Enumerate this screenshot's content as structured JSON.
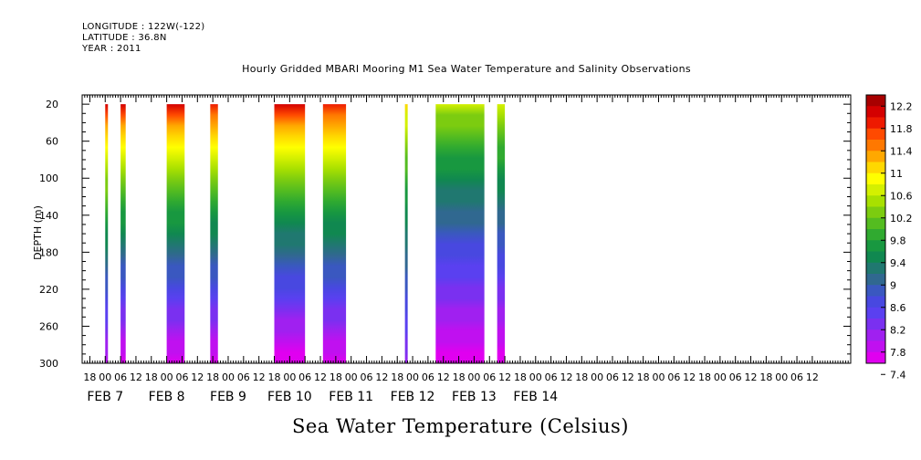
{
  "header": {
    "longitude": "LONGITUDE : 122W(-122)",
    "latitude": "LATITUDE : 36.8N",
    "year": "YEAR : 2011"
  },
  "chart_data": {
    "type": "heatmap",
    "title": "Hourly Gridded MBARI Mooring M1 Sea Water Temperature and Salinity Observations",
    "variable_label": "Sea Water Temperature (Celsius)",
    "ylabel": "DEPTH (m)",
    "ylim": [
      300,
      10
    ],
    "y_ticks": [
      20,
      60,
      100,
      140,
      180,
      220,
      260,
      300
    ],
    "xlim_hours": [
      -9,
      291
    ],
    "x_hour_ticks": [
      {
        "h": -6,
        "label": "18"
      },
      {
        "h": 0,
        "label": "00"
      },
      {
        "h": 6,
        "label": "06"
      },
      {
        "h": 12,
        "label": "12"
      },
      {
        "h": 18,
        "label": "18"
      },
      {
        "h": 24,
        "label": "00"
      },
      {
        "h": 30,
        "label": "06"
      },
      {
        "h": 36,
        "label": "12"
      },
      {
        "h": 42,
        "label": "18"
      },
      {
        "h": 48,
        "label": "00"
      },
      {
        "h": 54,
        "label": "06"
      },
      {
        "h": 60,
        "label": "12"
      },
      {
        "h": 66,
        "label": "18"
      },
      {
        "h": 72,
        "label": "00"
      },
      {
        "h": 78,
        "label": "06"
      },
      {
        "h": 84,
        "label": "12"
      },
      {
        "h": 90,
        "label": "18"
      },
      {
        "h": 96,
        "label": "00"
      },
      {
        "h": 102,
        "label": "06"
      },
      {
        "h": 108,
        "label": "12"
      },
      {
        "h": 114,
        "label": "18"
      },
      {
        "h": 120,
        "label": "00"
      },
      {
        "h": 126,
        "label": "06"
      },
      {
        "h": 132,
        "label": "12"
      },
      {
        "h": 138,
        "label": "18"
      },
      {
        "h": 144,
        "label": "00"
      },
      {
        "h": 150,
        "label": "06"
      },
      {
        "h": 156,
        "label": "12"
      },
      {
        "h": 162,
        "label": "18"
      },
      {
        "h": 168,
        "label": "00"
      },
      {
        "h": 174,
        "label": "06"
      },
      {
        "h": 180,
        "label": "12"
      },
      {
        "h": 186,
        "label": "18"
      },
      {
        "h": 192,
        "label": "00"
      },
      {
        "h": 198,
        "label": "06"
      },
      {
        "h": 204,
        "label": "12"
      },
      {
        "h": 210,
        "label": "18"
      },
      {
        "h": 216,
        "label": "00"
      },
      {
        "h": 222,
        "label": "06"
      },
      {
        "h": 228,
        "label": "12"
      },
      {
        "h": 234,
        "label": "18"
      },
      {
        "h": 240,
        "label": "00"
      },
      {
        "h": 246,
        "label": "06"
      },
      {
        "h": 252,
        "label": "12"
      },
      {
        "h": 258,
        "label": "18"
      },
      {
        "h": 264,
        "label": "00"
      },
      {
        "h": 270,
        "label": "06"
      },
      {
        "h": 276,
        "label": "12"
      }
    ],
    "date_labels": [
      {
        "h": 0,
        "label": "FEB  7"
      },
      {
        "h": 24,
        "label": "FEB  8"
      },
      {
        "h": 48,
        "label": "FEB  9"
      },
      {
        "h": 72,
        "label": "FEB 10"
      },
      {
        "h": 96,
        "label": "FEB 11"
      },
      {
        "h": 120,
        "label": "FEB 12"
      },
      {
        "h": 144,
        "label": "FEB 13"
      },
      {
        "h": 168,
        "label": "FEB 14"
      }
    ],
    "data_segments": [
      {
        "start_h": 0,
        "end_h": 1,
        "surface_temp": 12.0,
        "bottom_temp": 7.7
      },
      {
        "start_h": 6,
        "end_h": 8,
        "surface_temp": 12.0,
        "bottom_temp": 7.5
      },
      {
        "start_h": 24,
        "end_h": 31,
        "surface_temp": 12.0,
        "bottom_temp": 7.5
      },
      {
        "start_h": 41,
        "end_h": 44,
        "surface_temp": 11.9,
        "bottom_temp": 7.5
      },
      {
        "start_h": 66,
        "end_h": 78,
        "surface_temp": 12.0,
        "bottom_temp": 7.4
      },
      {
        "start_h": 85,
        "end_h": 94,
        "surface_temp": 11.9,
        "bottom_temp": 7.5
      },
      {
        "start_h": 117,
        "end_h": 118,
        "surface_temp": 11.0,
        "bottom_temp": 8.0
      },
      {
        "start_h": 129,
        "end_h": 148,
        "surface_temp": 10.6,
        "bottom_temp": 7.5
      },
      {
        "start_h": 153,
        "end_h": 156,
        "surface_temp": 10.7,
        "bottom_temp": 7.5
      }
    ],
    "colorbar": {
      "levels": [
        "12.2",
        "11.8",
        "11.4",
        "11",
        "10.6",
        "10.2",
        "9.8",
        "9.4",
        "9",
        "8.6",
        "8.2",
        "7.8",
        "7.4"
      ],
      "colors": [
        "#a80000",
        "#d40000",
        "#ee1a00",
        "#ff4a00",
        "#ff7800",
        "#ffa800",
        "#ffd800",
        "#ffff00",
        "#d4f000",
        "#a8e000",
        "#7ccc10",
        "#54bc20",
        "#30aa30",
        "#189840",
        "#108850",
        "#207870",
        "#306890",
        "#3a58c0",
        "#4848e0",
        "#5a40f0",
        "#7a30f0",
        "#a020f0",
        "#c010f0",
        "#e000f0"
      ]
    }
  }
}
